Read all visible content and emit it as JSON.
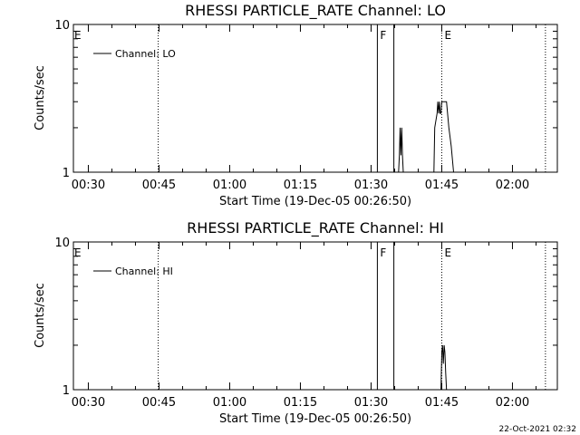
{
  "chart_data": [
    {
      "type": "line",
      "title": "RHESSI PARTICLE_RATE Channel: LO",
      "xlabel": "Start Time (19-Dec-05 00:26:50)",
      "ylabel": "Counts/sec",
      "xticks": [
        "00:30",
        "00:45",
        "01:00",
        "01:15",
        "01:30",
        "01:45",
        "02:00"
      ],
      "yticks": [
        "1",
        "10"
      ],
      "xlim": [
        "00:26:50",
        "02:09:00"
      ],
      "ylim": [
        1,
        10
      ],
      "yscale": "log",
      "legend_position": "top-left",
      "series": [
        {
          "name": "Channel: LO",
          "x": [
            "01:35:50",
            "01:36:00",
            "01:36:10",
            "01:36:20",
            "01:36:30",
            "01:36:40",
            "01:36:50",
            "01:43:20",
            "01:43:30",
            "01:44:00",
            "01:44:10",
            "01:44:20",
            "01:44:30",
            "01:44:40",
            "01:44:50",
            "01:45:00",
            "01:45:10",
            "01:46:00",
            "01:46:30",
            "01:47:00",
            "01:47:30"
          ],
          "y": [
            1,
            1.3,
            2.0,
            1.3,
            2.0,
            1.3,
            1,
            1,
            2.0,
            2.5,
            3.0,
            2.5,
            3.0,
            2.5,
            2.5,
            3.0,
            3.0,
            3.0,
            2.0,
            1.5,
            1
          ]
        }
      ],
      "markers": [
        {
          "label": "E",
          "time": "00:26:50",
          "style": "dashed"
        },
        {
          "label": "",
          "time": "00:44:50",
          "style": "dotted"
        },
        {
          "label": "F",
          "time": "01:31:20",
          "style": "solid"
        },
        {
          "label": "",
          "time": "01:34:50",
          "style": "solid"
        },
        {
          "label": "E",
          "time": "01:45:00",
          "style": "dotted"
        },
        {
          "label": "",
          "time": "02:07:00",
          "style": "dotted"
        }
      ]
    },
    {
      "type": "line",
      "title": "RHESSI PARTICLE_RATE Channel: HI",
      "xlabel": "Start Time (19-Dec-05 00:26:50)",
      "ylabel": "Counts/sec",
      "xticks": [
        "00:30",
        "00:45",
        "01:00",
        "01:15",
        "01:30",
        "01:45",
        "02:00"
      ],
      "yticks": [
        "1",
        "10"
      ],
      "xlim": [
        "00:26:50",
        "02:09:00"
      ],
      "ylim": [
        1,
        10
      ],
      "yscale": "log",
      "legend_position": "top-left",
      "series": [
        {
          "name": "Channel: HI",
          "x": [
            "01:44:50",
            "01:45:00",
            "01:45:10",
            "01:45:20",
            "01:45:30",
            "01:45:40",
            "01:45:50",
            "01:46:00"
          ],
          "y": [
            1,
            1.8,
            2.0,
            1.5,
            2.0,
            1.8,
            1.3,
            1
          ]
        }
      ],
      "markers": [
        {
          "label": "E",
          "time": "00:26:50",
          "style": "dashed"
        },
        {
          "label": "",
          "time": "00:44:50",
          "style": "dotted"
        },
        {
          "label": "F",
          "time": "01:31:20",
          "style": "solid"
        },
        {
          "label": "",
          "time": "01:34:50",
          "style": "solid"
        },
        {
          "label": "E",
          "time": "01:45:00",
          "style": "dotted"
        },
        {
          "label": "",
          "time": "02:07:00",
          "style": "dotted"
        }
      ]
    }
  ],
  "footer": {
    "timestamp": "22-Oct-2021 02:32"
  }
}
